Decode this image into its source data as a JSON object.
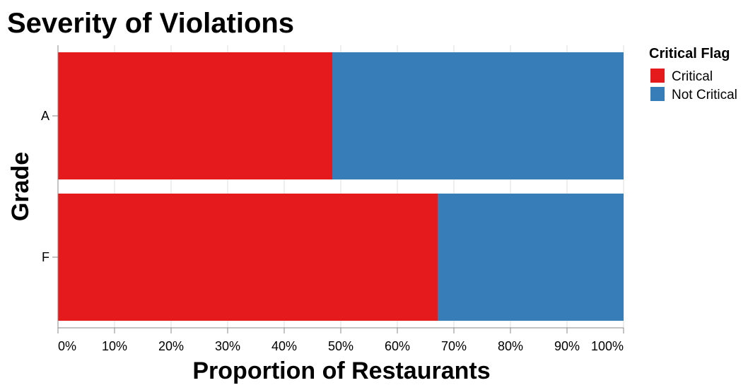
{
  "chart_data": {
    "type": "bar",
    "orientation": "horizontal",
    "stacked": "normalized",
    "title": "Severity of Violations",
    "xlabel": "Proportion of Restaurants",
    "ylabel": "Grade",
    "categories": [
      "A",
      "F"
    ],
    "series": [
      {
        "name": "Critical",
        "color": "#e41a1c",
        "values": [
          0.485,
          0.672
        ]
      },
      {
        "name": "Not Critical",
        "color": "#377eb8",
        "values": [
          0.515,
          0.328
        ]
      }
    ],
    "x_ticks": [
      "0%",
      "10%",
      "20%",
      "30%",
      "40%",
      "50%",
      "60%",
      "70%",
      "80%",
      "90%",
      "100%"
    ],
    "xlim": [
      0,
      1
    ],
    "grid": true,
    "legend": {
      "title": "Critical Flag",
      "position": "right"
    }
  }
}
